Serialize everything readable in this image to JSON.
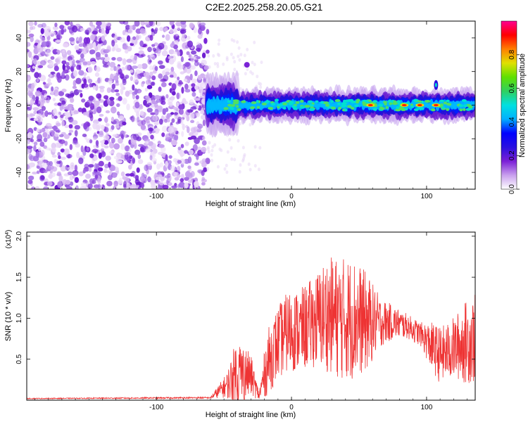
{
  "page": {
    "title": "C2E2.2025.258.20.05.G21"
  },
  "chart_data": [
    {
      "type": "heatmap",
      "xlabel": "Height of straight line (km)",
      "ylabel": "Frequency (Hz)",
      "xlim": [
        -196,
        136
      ],
      "ylim": [
        -50,
        50
      ],
      "x_ticks": [
        -100,
        0,
        100
      ],
      "x_tick_labels": [
        "-100",
        "0",
        "100"
      ],
      "y_ticks": [
        -40,
        -20,
        0,
        20,
        40
      ],
      "y_tick_labels": [
        "-40",
        "-20",
        "0",
        "20",
        "40"
      ],
      "colorbar": {
        "label": "Normalized spectral amplitude",
        "range": [
          0,
          1
        ],
        "ticks": [
          0.0,
          0.2,
          0.4,
          0.6,
          0.8
        ],
        "tick_labels": [
          "0.0",
          "0.2",
          "0.4",
          "0.6",
          "0.8"
        ],
        "colors": [
          "#ffffff",
          "#c9a0ee",
          "#7a1fd6",
          "#2a10e0",
          "#0000ff",
          "#00b0ff",
          "#00e0e0",
          "#30d060",
          "#60e000",
          "#e0e000",
          "#ff8000",
          "#ff0000",
          "#ff0090"
        ]
      },
      "features": {
        "noise_region_x": [
          -196,
          -62
        ],
        "signal_band_x": [
          -62,
          136
        ],
        "signal_center_hz": 0,
        "signal_halfwidth_hz": 6,
        "peak_regions_x": [
          [
            55,
            62
          ],
          [
            80,
            87
          ],
          [
            93,
            97
          ],
          [
            104,
            110
          ]
        ]
      }
    },
    {
      "type": "line",
      "xlabel": "Height of straight line (km)",
      "ylabel": "SNR (10 * v/v)",
      "y_multiplier_label": "(x10",
      "y_multiplier_exponent": "4",
      "y_multiplier_close": ")",
      "xlim": [
        -196,
        136
      ],
      "ylim": [
        0,
        2.05
      ],
      "x_ticks": [
        -100,
        0,
        100
      ],
      "x_tick_labels": [
        "-100",
        "0",
        "100"
      ],
      "y_ticks": [
        0.5,
        1.0,
        1.5,
        2.0
      ],
      "y_tick_labels": [
        "0.5",
        "1.0",
        "1.5",
        "2.0"
      ],
      "series": [
        {
          "color": "#ee3333",
          "envelope_x": [
            -196,
            -60,
            -48,
            -40,
            -30,
            -24,
            -18,
            -10,
            -2,
            6,
            16,
            26,
            36,
            46,
            56,
            66,
            76,
            86,
            96,
            104,
            110,
            116,
            122,
            128,
            136
          ],
          "envelope_mean": [
            0.02,
            0.03,
            0.18,
            0.35,
            0.3,
            0.05,
            0.45,
            0.7,
            0.85,
            0.85,
            0.95,
            1.05,
            1.0,
            1.0,
            0.95,
            0.95,
            0.95,
            0.9,
            0.8,
            0.65,
            0.55,
            0.6,
            0.65,
            0.7,
            0.75
          ],
          "envelope_amplitude": [
            0.005,
            0.01,
            0.15,
            0.45,
            0.25,
            0.05,
            0.4,
            0.45,
            0.5,
            0.5,
            0.55,
            0.7,
            0.75,
            0.75,
            0.6,
            0.3,
            0.2,
            0.15,
            0.15,
            0.3,
            0.35,
            0.35,
            0.4,
            0.5,
            0.55
          ]
        }
      ]
    }
  ]
}
